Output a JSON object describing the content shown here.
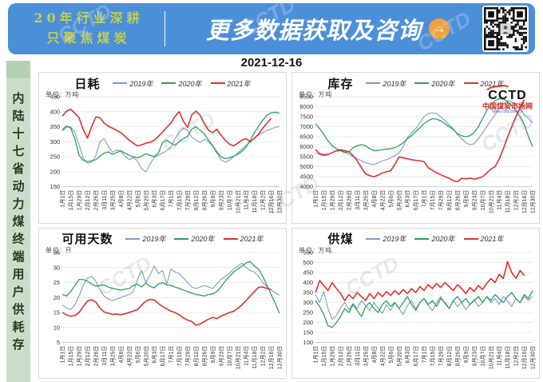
{
  "banner": {
    "tagline_line1": "20年行业深耕",
    "tagline_line2": "只聚焦煤炭",
    "cta": "更多数据获取及咨询",
    "arrow_glyph": "→",
    "colors": {
      "background": "#4b8fd8",
      "tagline": "#c2cf50",
      "cta": "#ffffff",
      "arrow_bg": "#f0a23c"
    }
  },
  "date": "2021-12-16",
  "sidebar": {
    "vertical_text": "内陆十七省动力煤终端用户供耗存",
    "background": "#cbddcb"
  },
  "watermark": "CCTD",
  "logo": {
    "name": "CCTD",
    "site_name": "中国煤炭市场网",
    "site_url": "www.cctd.com.cn"
  },
  "legend": {
    "series": [
      {
        "label": "2019年",
        "color": "#7d9cc9"
      },
      {
        "label": "2020年",
        "color": "#2ca05a"
      },
      {
        "label": "2021年",
        "color": "#e2312d"
      }
    ]
  },
  "categories": [
    "1月1日",
    "1月15日",
    "1月29日",
    "2月12日",
    "2月26日",
    "3月11日",
    "3月25日",
    "4月8日",
    "4月22日",
    "5月6日",
    "5月20日",
    "6月3日",
    "6月17日",
    "7月1日",
    "7月15日",
    "7月29日",
    "8月12日",
    "8月26日",
    "9月9日",
    "9月23日",
    "10月7日",
    "10月21日",
    "11月4日",
    "11月18日",
    "12月2日",
    "12月16日",
    "12月30日"
  ],
  "chart_data": [
    {
      "type": "line",
      "title": "日耗",
      "unit_label": "单位: 万吨",
      "ylim": [
        150,
        450
      ],
      "ytick_step": 50,
      "grid": true,
      "legend_position": "top",
      "series": [
        {
          "name": "2019年",
          "values": [
            335,
            348,
            350,
            330,
            290,
            245,
            228,
            232,
            252,
            300,
            310,
            285,
            265,
            272,
            268,
            252,
            240,
            248,
            235,
            210,
            200,
            225,
            248,
            255,
            262,
            270,
            282,
            310,
            332,
            345,
            338,
            315,
            305,
            298,
            308,
            300,
            285,
            262,
            240,
            232,
            238,
            250,
            262,
            275,
            288,
            298,
            312,
            322,
            330,
            338,
            342,
            348,
            350
          ]
        },
        {
          "name": "2020年",
          "values": [
            340,
            352,
            345,
            310,
            255,
            238,
            234,
            236,
            240,
            252,
            262,
            266,
            258,
            264,
            270,
            262,
            255,
            250,
            246,
            252,
            260,
            255,
            250,
            262,
            298,
            305,
            295,
            288,
            300,
            310,
            318,
            342,
            350,
            338,
            326,
            305,
            288,
            266,
            250,
            244,
            246,
            252,
            258,
            268,
            282,
            305,
            330,
            352,
            372,
            388,
            396,
            398,
            395
          ]
        },
        {
          "name": "2021年",
          "values": [
            385,
            402,
            408,
            395,
            380,
            340,
            312,
            350,
            382,
            380,
            362,
            352,
            345,
            338,
            330,
            318,
            305,
            295,
            286,
            290,
            295,
            298,
            305,
            318,
            332,
            348,
            362,
            385,
            400,
            368,
            348,
            390,
            402,
            388,
            362,
            338,
            330,
            342,
            322,
            305,
            292,
            286,
            295,
            305,
            310,
            300,
            312,
            325,
            345,
            362,
            378
          ]
        }
      ]
    },
    {
      "type": "line",
      "title": "库存",
      "unit_label": "单位: 万吨",
      "ylim": [
        4000,
        8500
      ],
      "ytick_step": 500,
      "grid": true,
      "legend_position": "top",
      "series": [
        {
          "name": "2019年",
          "values": [
            5700,
            5600,
            5550,
            5600,
            5700,
            5780,
            5800,
            5750,
            5600,
            5500,
            5400,
            5300,
            5200,
            5150,
            5100,
            5200,
            5300,
            5350,
            5450,
            5550,
            5700,
            6000,
            6450,
            6700,
            6900,
            7200,
            7500,
            7650,
            7700,
            7650,
            7500,
            7300,
            7100,
            6900,
            6600,
            6400,
            6200,
            6100,
            6150,
            6400,
            6700,
            7000,
            7300,
            7600,
            7900,
            8100,
            8300,
            8250,
            8100,
            7900,
            7600,
            7400,
            7200
          ]
        },
        {
          "name": "2020年",
          "values": [
            7150,
            6900,
            6600,
            6300,
            6050,
            5900,
            5800,
            5700,
            5750,
            5950,
            6050,
            6100,
            6050,
            5900,
            5800,
            5820,
            5850,
            5880,
            5900,
            5950,
            6050,
            6200,
            6400,
            6550,
            6750,
            6950,
            7150,
            7300,
            7400,
            7380,
            7300,
            7150,
            7000,
            6850,
            6650,
            6550,
            6500,
            6550,
            6700,
            7000,
            7400,
            7800,
            8100,
            8300,
            8400,
            8380,
            8250,
            8050,
            7800,
            7500,
            7100,
            6500,
            6000
          ]
        },
        {
          "name": "2021年",
          "values": [
            5850,
            5650,
            5600,
            5620,
            5700,
            5800,
            5850,
            5800,
            5750,
            5550,
            5300,
            4950,
            4650,
            4550,
            4500,
            4580,
            4680,
            4750,
            4800,
            5100,
            5480,
            5450,
            5400,
            5350,
            5320,
            5300,
            5250,
            4950,
            4820,
            4700,
            4600,
            4500,
            4430,
            4300,
            4250,
            4420,
            4400,
            4430,
            4380,
            4430,
            4500,
            4680,
            4880,
            5000,
            5380,
            5900,
            6480,
            7000,
            7500,
            7950,
            8350
          ]
        }
      ]
    },
    {
      "type": "line",
      "title": "可用天数",
      "unit_label": "单位: 日",
      "ylim": [
        5,
        35
      ],
      "ytick_step": 5,
      "grid": true,
      "legend_position": "top",
      "series": [
        {
          "name": "2019年",
          "values": [
            17.5,
            16.5,
            16,
            17.5,
            20.5,
            24,
            26.5,
            27,
            25.5,
            22.5,
            20.5,
            19.5,
            19,
            19.5,
            20,
            20.5,
            21,
            22,
            26,
            29,
            25,
            27.5,
            30.5,
            28,
            29,
            24.5,
            29.5,
            28.5,
            28,
            26.5,
            25,
            23.5,
            23,
            23.5,
            24,
            23.5,
            23,
            24.5,
            26,
            27,
            28,
            29.5,
            30.5,
            31.5,
            30,
            29,
            28.5,
            27,
            25,
            23.5,
            22.5,
            21.5,
            20.8
          ]
        },
        {
          "name": "2020年",
          "values": [
            21,
            20.5,
            22,
            24,
            26,
            26,
            25.5,
            24.5,
            23.8,
            24,
            24.2,
            23.5,
            23,
            22.8,
            22.5,
            22.8,
            23,
            24,
            24.5,
            23.5,
            24.8,
            23.8,
            23.2,
            24.5,
            25,
            24.2,
            24,
            23.5,
            23,
            22.5,
            22,
            21.5,
            21,
            20.8,
            20.5,
            21,
            21.2,
            22,
            23.5,
            25.5,
            27,
            28.5,
            29.5,
            30.5,
            31.5,
            32,
            30.5,
            29.5,
            27,
            24,
            21,
            18,
            14.8
          ]
        },
        {
          "name": "2021年",
          "values": [
            15,
            14.2,
            13.8,
            14,
            15,
            17,
            18.8,
            19.3,
            18.5,
            16.5,
            15.2,
            14.8,
            14.4,
            14.5,
            14.3,
            14.6,
            15,
            15.5,
            16,
            17.5,
            18.8,
            19.4,
            19.2,
            18,
            17,
            16.2,
            15.5,
            15,
            14.2,
            13.2,
            12.5,
            12,
            10.8,
            11.2,
            12,
            12.8,
            13.4,
            13,
            13.8,
            14.4,
            15,
            15.4,
            16.4,
            17.5,
            19,
            20.5,
            22,
            23.4,
            23.5,
            23,
            22.6
          ]
        }
      ]
    },
    {
      "type": "line",
      "title": "供煤",
      "unit_label": "单位: 万吨",
      "ylim": [
        100,
        550
      ],
      "ytick_step": 50,
      "grid": true,
      "legend_position": "top",
      "series": [
        {
          "name": "2019年",
          "values": [
            340,
            300,
            355,
            270,
            215,
            235,
            275,
            300,
            265,
            295,
            270,
            310,
            285,
            260,
            300,
            270,
            245,
            290,
            260,
            300,
            270,
            240,
            285,
            310,
            270,
            300,
            320,
            285,
            260,
            300,
            330,
            295,
            270,
            310,
            280,
            300,
            265,
            290,
            315,
            280,
            300,
            330,
            300,
            320,
            290,
            330,
            310,
            280,
            320,
            300,
            330,
            310,
            330
          ]
        },
        {
          "name": "2020年",
          "values": [
            310,
            280,
            240,
            185,
            175,
            200,
            230,
            270,
            250,
            290,
            260,
            230,
            280,
            300,
            270,
            250,
            290,
            310,
            280,
            300,
            270,
            300,
            330,
            290,
            260,
            300,
            320,
            290,
            310,
            280,
            320,
            300,
            270,
            310,
            330,
            300,
            320,
            290,
            310,
            330,
            300,
            330,
            310,
            340,
            320,
            300,
            330,
            350,
            320,
            300,
            340,
            320,
            360
          ]
        },
        {
          "name": "2021年",
          "values": [
            350,
            410,
            385,
            360,
            400,
            370,
            345,
            310,
            340,
            320,
            350,
            330,
            310,
            345,
            320,
            350,
            330,
            355,
            335,
            360,
            340,
            365,
            345,
            370,
            350,
            380,
            360,
            390,
            370,
            395,
            375,
            400,
            380,
            360,
            390,
            370,
            345,
            375,
            355,
            385,
            365,
            395,
            420,
            400,
            440,
            420,
            505,
            450,
            420,
            460,
            435
          ]
        }
      ]
    }
  ]
}
